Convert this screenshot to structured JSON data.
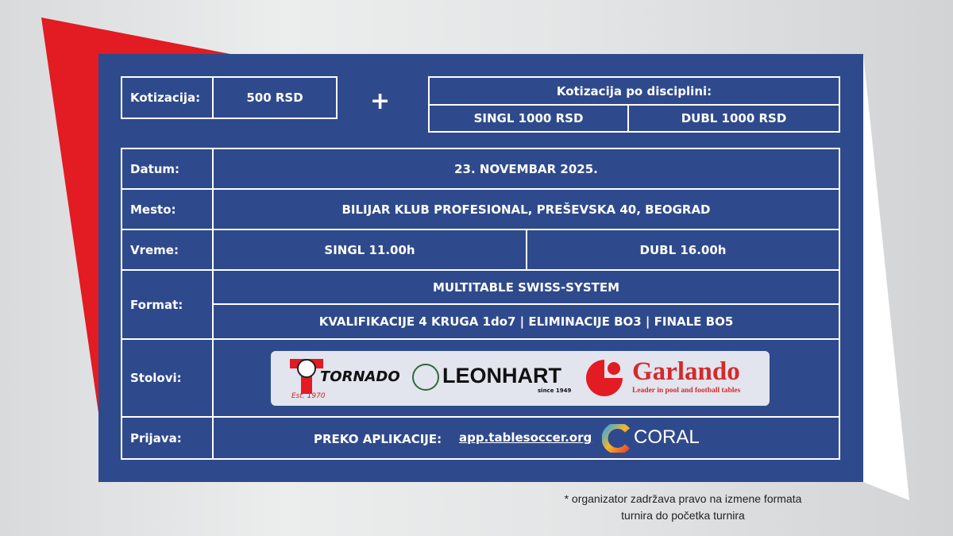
{
  "fees": {
    "label": "Kotizacija:",
    "value": "500 RSD",
    "plus": "+",
    "discipline_title": "Kotizacija po disciplini:",
    "singl": "SINGL 1000 RSD",
    "dubl": "DUBL 1000 RSD"
  },
  "rows": {
    "datum": {
      "label": "Datum:",
      "value": "23. NOVEMBAR 2025."
    },
    "mesto": {
      "label": "Mesto:",
      "value": "BILIJAR KLUB PROFESIONAL, PREŠEVSKA 40, BEOGRAD"
    },
    "vreme": {
      "label": "Vreme:",
      "singl": "SINGL 11.00h",
      "dubl": "DUBL 16.00h"
    },
    "format": {
      "label": "Format:",
      "line1": "MULTITABLE SWISS-SYSTEM",
      "line2": "KVALIFIKACIJE 4 KRUGA 1do7 | ELIMINACIJE BO3 | FINALE BO5"
    },
    "stolovi": {
      "label": "Stolovi:",
      "logos": {
        "tornado": "TORNADO",
        "tornado_est": "Est. 1970",
        "leonhart": "LEONHART",
        "leonhart_since": "since 1949",
        "garlando": "Garlando",
        "garlando_tag": "Leader in pool and football tables"
      }
    },
    "prijava": {
      "label": "Prijava:",
      "text": "PREKO APLIKACIJE:",
      "link": "app.tablesoccer.org",
      "coral": "CORAL"
    }
  },
  "note": {
    "line1": "* organizator zadržava pravo na izmene formata",
    "line2": "turnira do početka turnira"
  },
  "colors": {
    "panel": "#2f4a8c",
    "red": "#e31b23",
    "garlando": "#d42a2a"
  }
}
